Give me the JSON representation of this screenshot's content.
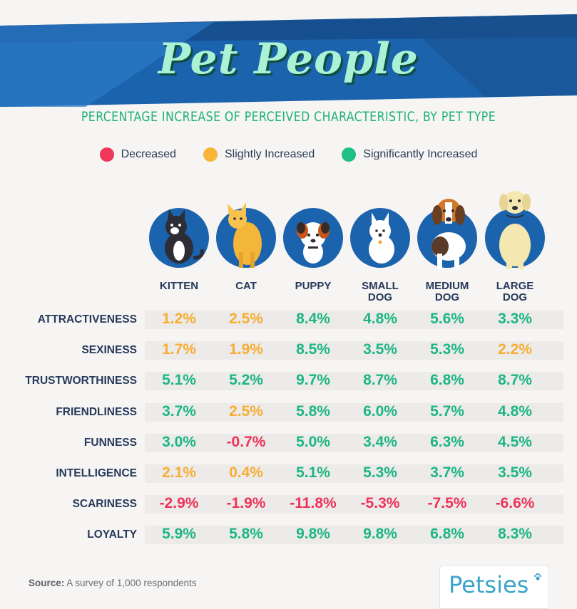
{
  "title": "Pet People",
  "subtitle": "PERCENTAGE INCREASE OF PERCEIVED CHARACTERISTIC, BY PET TYPE",
  "legend": [
    {
      "label": "Decreased",
      "color": "#f0365a"
    },
    {
      "label": "Slightly Increased",
      "color": "#f9b43a"
    },
    {
      "label": "Significantly Increased",
      "color": "#1fbf86"
    }
  ],
  "chart_data": {
    "type": "table",
    "columns": [
      {
        "key": "kitten",
        "line1": "KITTEN",
        "line2": ""
      },
      {
        "key": "cat",
        "line1": "CAT",
        "line2": ""
      },
      {
        "key": "puppy",
        "line1": "PUPPY",
        "line2": ""
      },
      {
        "key": "small_dog",
        "line1": "SMALL",
        "line2": "DOG"
      },
      {
        "key": "medium_dog",
        "line1": "MEDIUM",
        "line2": "DOG"
      },
      {
        "key": "large_dog",
        "line1": "LARGE",
        "line2": "DOG"
      }
    ],
    "rows": [
      {
        "label": "ATTRACTIVENESS",
        "values": [
          "1.2%",
          "2.5%",
          "8.4%",
          "4.8%",
          "5.6%",
          "3.3%"
        ],
        "levels": [
          "slight",
          "slight",
          "significant",
          "significant",
          "significant",
          "significant"
        ]
      },
      {
        "label": "SEXINESS",
        "values": [
          "1.7%",
          "1.9%",
          "8.5%",
          "3.5%",
          "5.3%",
          "2.2%"
        ],
        "levels": [
          "slight",
          "slight",
          "significant",
          "significant",
          "significant",
          "slight"
        ]
      },
      {
        "label": "TRUSTWORTHINESS",
        "values": [
          "5.1%",
          "5.2%",
          "9.7%",
          "8.7%",
          "6.8%",
          "8.7%"
        ],
        "levels": [
          "significant",
          "significant",
          "significant",
          "significant",
          "significant",
          "significant"
        ]
      },
      {
        "label": "FRIENDLINESS",
        "values": [
          "3.7%",
          "2.5%",
          "5.8%",
          "6.0%",
          "5.7%",
          "4.8%"
        ],
        "levels": [
          "significant",
          "slight",
          "significant",
          "significant",
          "significant",
          "significant"
        ]
      },
      {
        "label": "FUNNESS",
        "values": [
          "3.0%",
          "-0.7%",
          "5.0%",
          "3.4%",
          "6.3%",
          "4.5%"
        ],
        "levels": [
          "significant",
          "decreased",
          "significant",
          "significant",
          "significant",
          "significant"
        ]
      },
      {
        "label": "INTELLIGENCE",
        "values": [
          "2.1%",
          "0.4%",
          "5.1%",
          "5.3%",
          "3.7%",
          "3.5%"
        ],
        "levels": [
          "slight",
          "slight",
          "significant",
          "significant",
          "significant",
          "significant"
        ]
      },
      {
        "label": "SCARINESS",
        "values": [
          "-2.9%",
          "-1.9%",
          "-11.8%",
          "-5.3%",
          "-7.5%",
          "-6.6%"
        ],
        "levels": [
          "decreased",
          "decreased",
          "decreased",
          "decreased",
          "decreased",
          "decreased"
        ]
      },
      {
        "label": "LOYALTY",
        "values": [
          "5.9%",
          "5.8%",
          "9.8%",
          "9.8%",
          "6.8%",
          "8.3%"
        ],
        "levels": [
          "significant",
          "significant",
          "significant",
          "significant",
          "significant",
          "significant"
        ]
      }
    ]
  },
  "footer": {
    "source_label": "Source:",
    "source_text": "A survey of 1,000 respondents",
    "brand": "Petsies"
  }
}
